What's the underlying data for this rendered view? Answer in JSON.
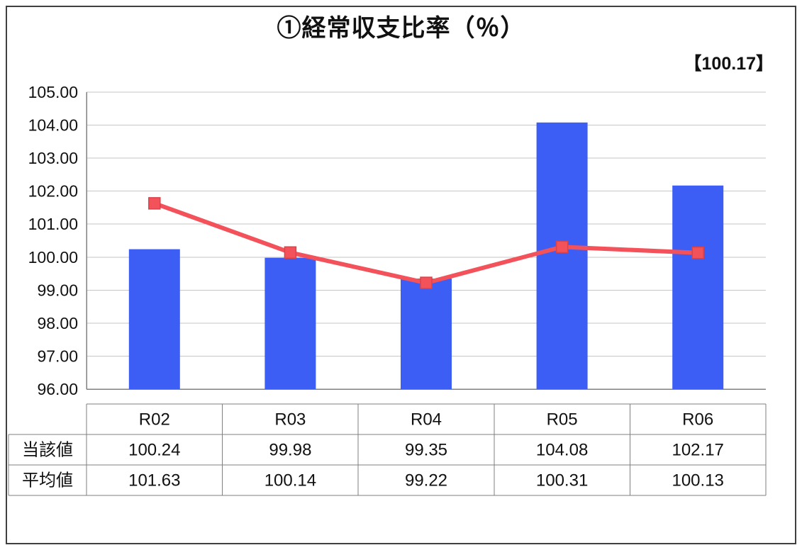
{
  "title": "①経常収支比率（％）",
  "annotation": "【100.17】",
  "chart_data": {
    "type": "bar+line",
    "title": "①経常収支比率（％）",
    "annotation": "【100.17】",
    "categories": [
      "R02",
      "R03",
      "R04",
      "R05",
      "R06"
    ],
    "series": [
      {
        "name": "当該値",
        "type": "bar",
        "color": "#3d5ef5",
        "values": [
          100.24,
          99.98,
          99.35,
          104.08,
          102.17
        ]
      },
      {
        "name": "平均値",
        "type": "line",
        "color": "#f4525a",
        "marker_border": "#d8434c",
        "values": [
          101.63,
          100.14,
          99.22,
          100.31,
          100.13
        ]
      }
    ],
    "ylim": [
      96,
      105
    ],
    "ytick_step": 1,
    "ytick_decimals": 2,
    "grid": true,
    "grid_color": "#c6c6c6",
    "axis_color": "#808080",
    "legend": "table-below"
  }
}
